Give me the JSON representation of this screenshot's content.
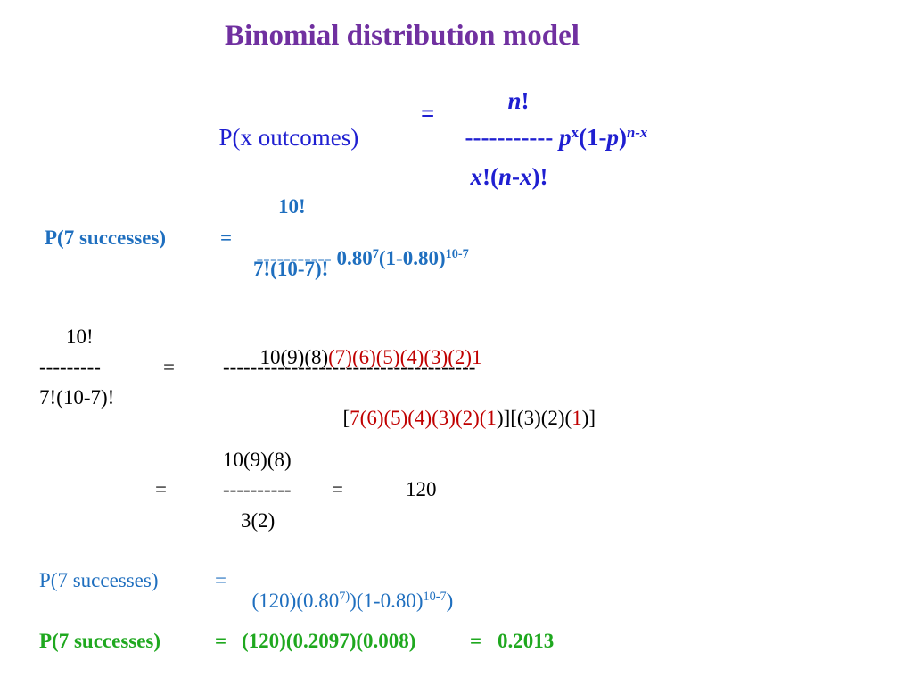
{
  "colors": {
    "title": "#7030a0",
    "formula": "#1f1fd1",
    "calc": "#1f6fbf",
    "work": "#000000",
    "highlight": "#c00000",
    "result": "#1fa81f"
  },
  "title": "Binomial distribution model",
  "formula": {
    "numerator_var": "n",
    "numerator_bang": "!",
    "lhs": "P(x outcomes)",
    "eq": "=",
    "dashes": "-----------",
    "p1": "p",
    "exp_x": "x",
    "paren_open": "(1-",
    "p2": "p",
    "paren_close": ")",
    "exp_nx": "n-x",
    "den_x": "x",
    "den_bang1": "!(",
    "den_n": "n",
    "den_minus": "-",
    "den_x2": "x",
    "den_close": ")!"
  },
  "step1": {
    "numerator": "10!",
    "lhs": "P(7 successes)",
    "eq": "=",
    "dashes": "-----------",
    "base": "0.80",
    "exp7": "7",
    "paren": "(1-0.80)",
    "exp": "10-7",
    "denominator": "7!(10-7)!"
  },
  "work": {
    "left_num": "10!",
    "right_num_black": "10(9)(8)",
    "right_num_red": "(7)(6)(5)(4)(3)(2)1",
    "left_dash": "---------",
    "eq": "=",
    "right_dash": "-------------------------------------",
    "left_den": "7!(10-7)!",
    "right_den_1": "[",
    "right_den_2": "7(6)(5)(4)(3)(2)(1",
    "right_den_3": ")][(3)(2)(",
    "right_den_4": "1",
    "right_den_5": ")]"
  },
  "simplify": {
    "num": "10(9)(8)",
    "eq1": "=",
    "dash": "----------",
    "eq2": "=",
    "value": "120",
    "den": "3(2)"
  },
  "step2": {
    "lhs": "P(7 successes)",
    "eq": "=",
    "mid": "(120)(0.80",
    "exp7": "7)",
    "mid2": ")(1-0.80)",
    "exp": "10-7",
    "end": ")"
  },
  "step3": {
    "lhs": "P(7 successes)",
    "eq": "=",
    "expr": "(120)(0.2097)(0.008)",
    "eq2": "=",
    "result": "0.2013"
  }
}
